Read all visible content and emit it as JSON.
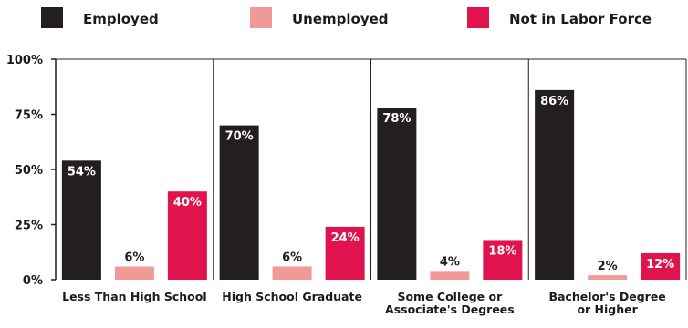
{
  "chart_data": {
    "type": "bar",
    "categories": [
      "Less Than High School",
      "High School Graduate",
      "Some College or Associate's Degrees",
      "Bachelor's Degree or Higher"
    ],
    "category_lines": [
      [
        "Less Than High School"
      ],
      [
        "High School Graduate"
      ],
      [
        "Some College or",
        "Associate's Degrees"
      ],
      [
        "Bachelor's Degree",
        "or Higher"
      ]
    ],
    "series": [
      {
        "name": "Employed",
        "values": [
          54,
          70,
          78,
          86
        ],
        "labels": [
          "54%",
          "70%",
          "78%",
          "86%"
        ]
      },
      {
        "name": "Unemployed",
        "values": [
          6,
          6,
          4,
          2
        ],
        "labels": [
          "6%",
          "6%",
          "4%",
          "2%"
        ]
      },
      {
        "name": "Not in Labor Force",
        "values": [
          40,
          24,
          18,
          12
        ],
        "labels": [
          "40%",
          "24%",
          "18%",
          "12%"
        ]
      }
    ],
    "colors": [
      "#231f20",
      "#f09a98",
      "#e0134f"
    ],
    "value_label_colors": [
      "#ffffff",
      "#231f20",
      "#ffffff"
    ],
    "ylim": [
      0,
      100
    ],
    "yticks": [
      0,
      25,
      50,
      75,
      100
    ],
    "ytick_labels": [
      "0%",
      "25%",
      "50%",
      "75%",
      "100%"
    ],
    "grid": "vertical separators between categories",
    "legend_position": "top"
  }
}
